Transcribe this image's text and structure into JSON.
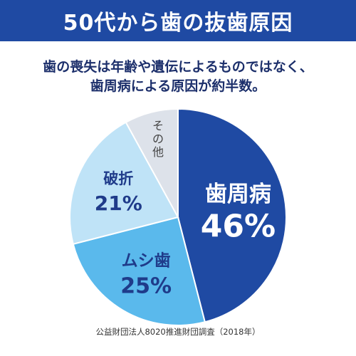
{
  "header": {
    "title": "50代から歯の抜歯原因"
  },
  "subtitle": {
    "line1": "歯の喪失は年齢や遺伝によるものではなく、",
    "line2": "歯周病による原因が約半数。"
  },
  "chart_data": {
    "type": "pie",
    "categories": [
      "歯周病",
      "ムシ歯",
      "破折",
      "その他"
    ],
    "values": [
      46,
      25,
      21,
      8
    ],
    "slice_labels": [
      "46%",
      "25%",
      "21%",
      ""
    ],
    "colors": [
      "#1f4aa3",
      "#5ab9ec",
      "#bfe3f7",
      "#dde2ea"
    ],
    "label_colors": [
      "#ffffff",
      "#1f3b8a",
      "#1f3b8a",
      "#444444"
    ],
    "start_angle": "12 o'clock",
    "direction": "clockwise"
  },
  "footer": {
    "source": "公益財団法人8020推進財団調査（2018年）"
  }
}
